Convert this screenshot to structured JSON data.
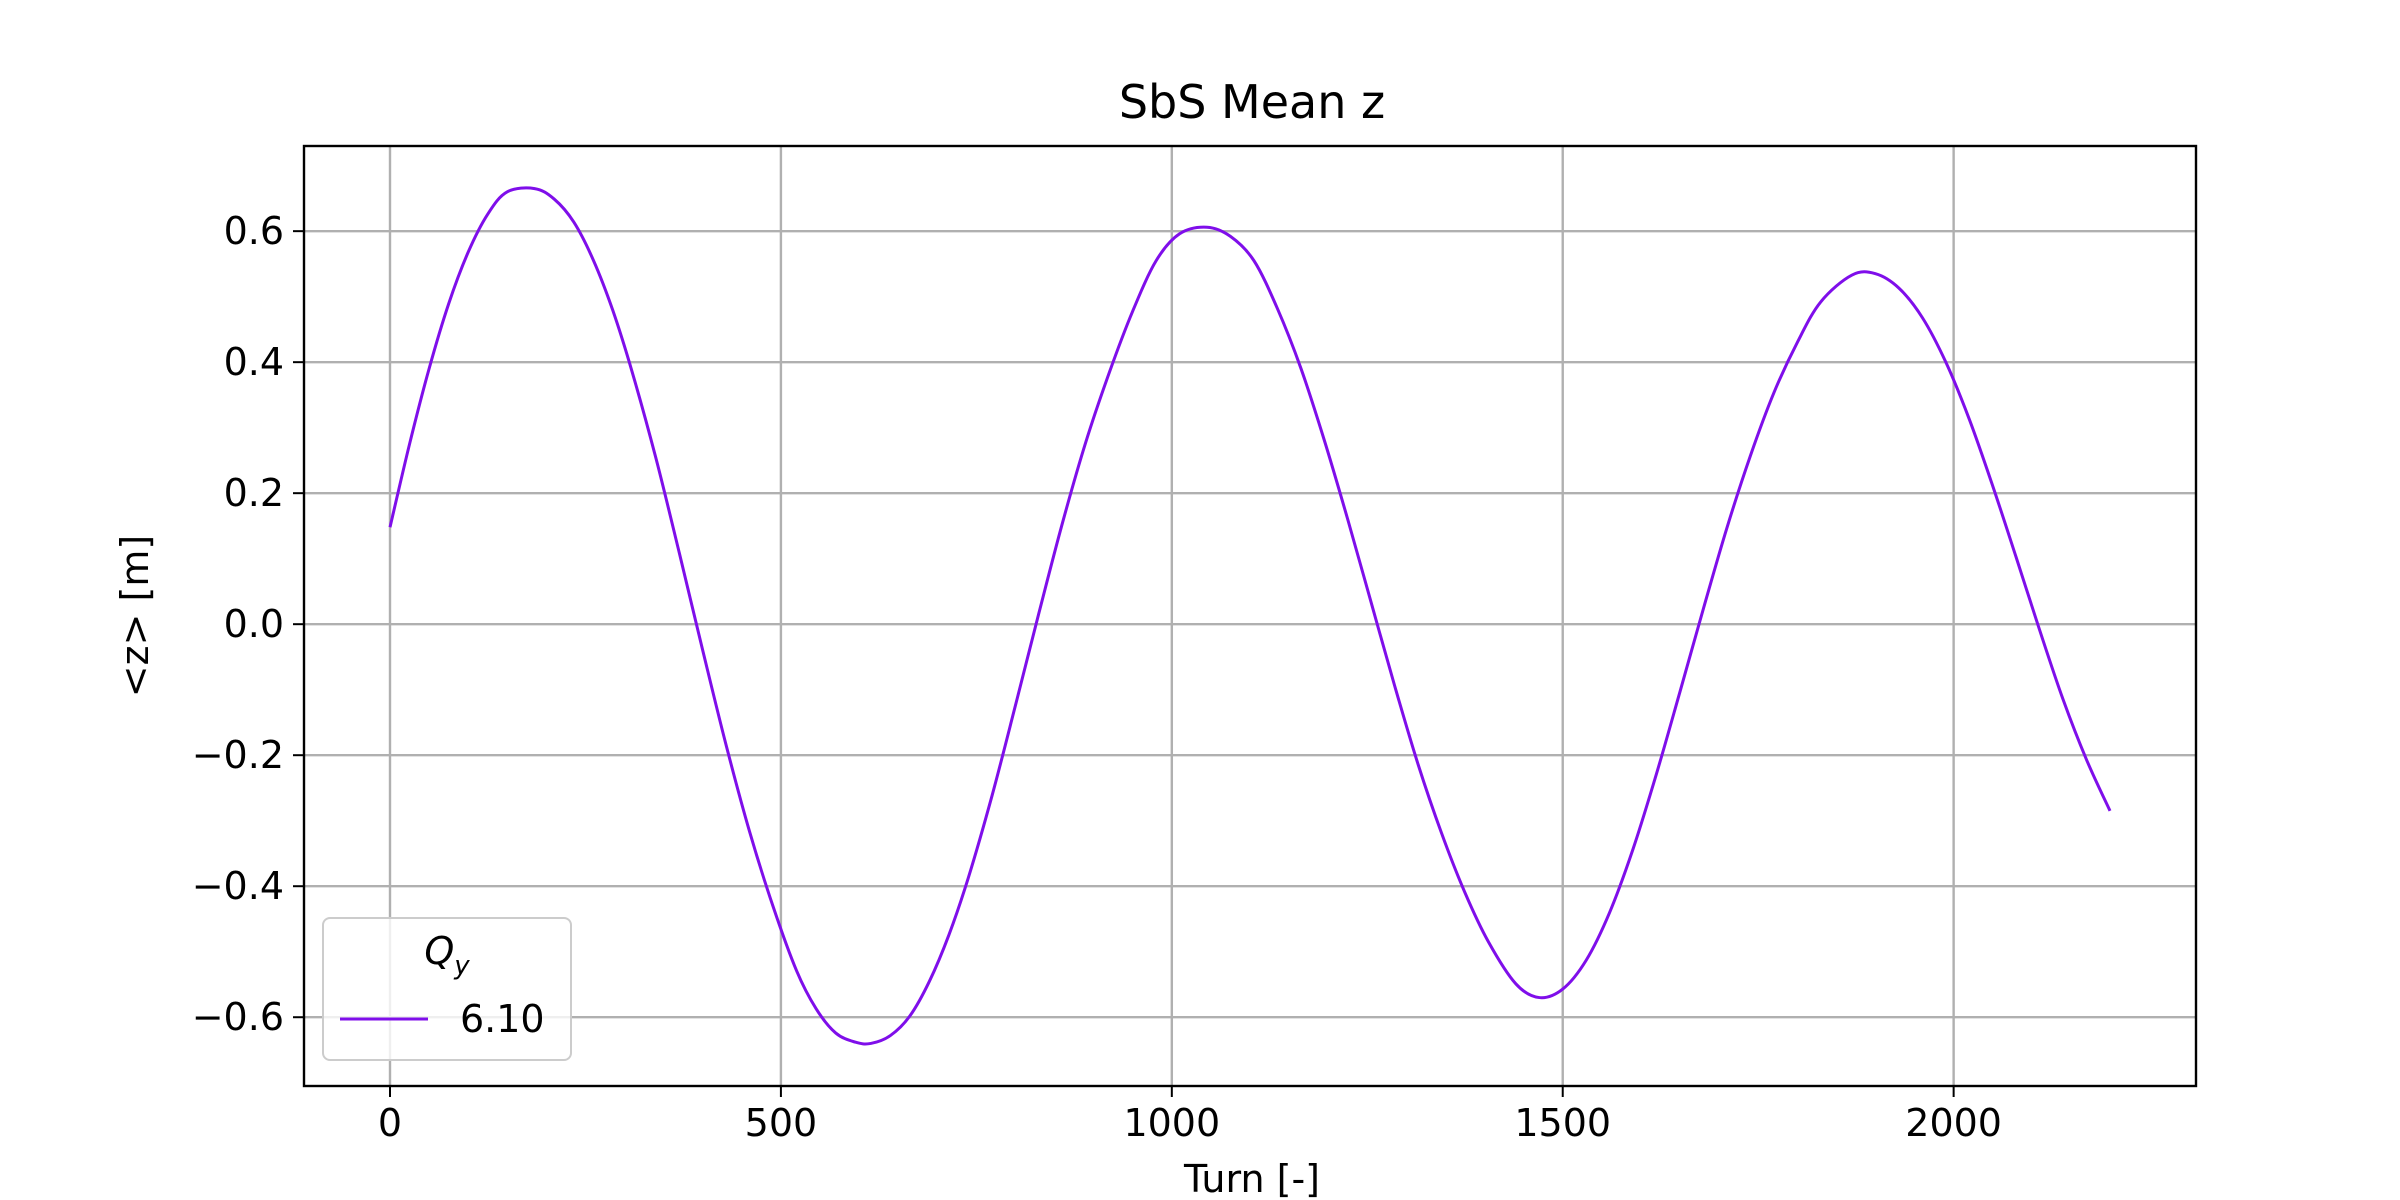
{
  "chart_data": {
    "type": "line",
    "title": "SbS Mean z",
    "xlabel": "Turn [-]",
    "ylabel": "<z> [m]",
    "xlim": [
      -110,
      2310
    ],
    "ylim": [
      -0.705,
      0.73
    ],
    "xticks": [
      0,
      500,
      1000,
      1500,
      2000
    ],
    "xtick_labels": [
      "0",
      "500",
      "1000",
      "1500",
      "2000"
    ],
    "yticks": [
      -0.6,
      -0.4,
      -0.2,
      0.0,
      0.2,
      0.4,
      0.6
    ],
    "ytick_labels": [
      "−0.6",
      "−0.4",
      "−0.2",
      "0.0",
      "0.2",
      "0.4",
      "0.6"
    ],
    "grid": true,
    "legend": {
      "title_main": "Q",
      "title_sub": "y",
      "placement": "lower-left"
    },
    "series": [
      {
        "name": "6.10",
        "color": "#7f0eea",
        "x": [
          0,
          25,
          50,
          75,
          100,
          125,
          150,
          185,
          210,
          235,
          260,
          285,
          310,
          340,
          370,
          400,
          430,
          460,
          490,
          520,
          545,
          570,
          595,
          615,
          640,
          665,
          690,
          715,
          740,
          770,
          800,
          830,
          860,
          890,
          920,
          950,
          980,
          1010,
          1045,
          1075,
          1105,
          1135,
          1165,
          1195,
          1225,
          1255,
          1285,
          1315,
          1345,
          1375,
          1405,
          1440,
          1470,
          1500,
          1530,
          1560,
          1590,
          1620,
          1650,
          1680,
          1710,
          1740,
          1770,
          1800,
          1830,
          1870,
          1900,
          1930,
          1960,
          1990,
          2020,
          2050,
          2080,
          2110,
          2140,
          2170,
          2200
        ],
        "y": [
          0.148,
          0.275,
          0.39,
          0.489,
          0.568,
          0.626,
          0.66,
          0.665,
          0.649,
          0.614,
          0.556,
          0.479,
          0.384,
          0.254,
          0.109,
          -0.04,
          -0.185,
          -0.317,
          -0.431,
          -0.529,
          -0.587,
          -0.624,
          -0.638,
          -0.64,
          -0.628,
          -0.598,
          -0.545,
          -0.474,
          -0.386,
          -0.262,
          -0.124,
          0.017,
          0.154,
          0.278,
          0.384,
          0.478,
          0.555,
          0.596,
          0.606,
          0.592,
          0.555,
          0.482,
          0.391,
          0.281,
          0.16,
          0.033,
          -0.094,
          -0.214,
          -0.319,
          -0.41,
          -0.485,
          -0.549,
          -0.57,
          -0.557,
          -0.513,
          -0.44,
          -0.343,
          -0.228,
          -0.103,
          0.024,
          0.147,
          0.257,
          0.353,
          0.43,
          0.492,
          0.533,
          0.535,
          0.513,
          0.468,
          0.4,
          0.313,
          0.211,
          0.102,
          -0.009,
          -0.115,
          -0.207,
          -0.285
        ]
      }
    ]
  }
}
